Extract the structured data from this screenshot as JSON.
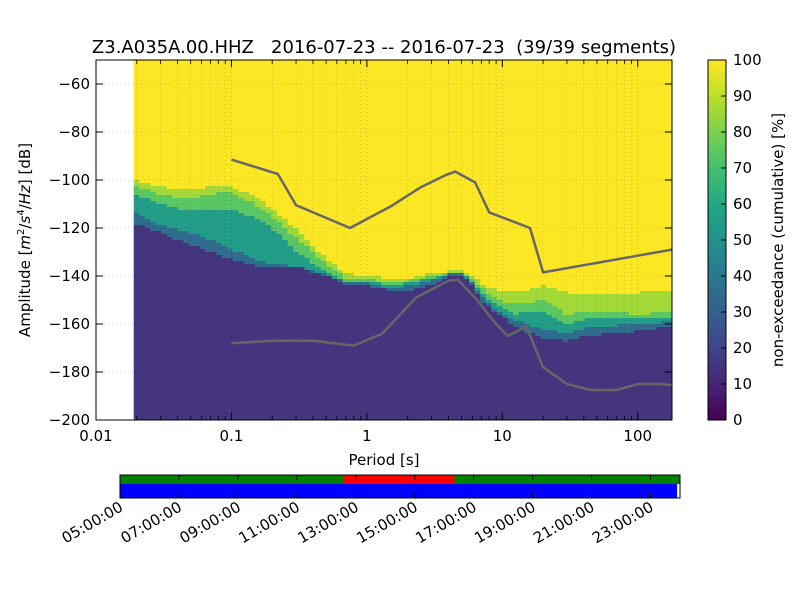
{
  "chart_data": [
    {
      "type": "heatmap",
      "title": "Z3.A035A.00.HHZ   2016-07-23 -- 2016-07-23  (39/39 segments)",
      "xlabel": "Period [s]",
      "ylabel": "Amplitude [m^2/s^4/Hz] [dB]",
      "x_scale": "log",
      "xlim": [
        0.01,
        179
      ],
      "ylim": [
        -200,
        -50
      ],
      "x_ticks": [
        0.01,
        0.1,
        1,
        10,
        100
      ],
      "x_tick_labels": [
        "0.01",
        "0.1",
        "1",
        "10",
        "100"
      ],
      "y_ticks": [
        -200,
        -180,
        -160,
        -140,
        -120,
        -100,
        -80,
        -60
      ],
      "y_tick_labels": [
        "−200",
        "−180",
        "−160",
        "−140",
        "−120",
        "−100",
        "−80",
        "−60"
      ],
      "grid": true,
      "data_xrange": [
        0.019,
        179
      ],
      "colorbar": {
        "label": "non-exceedance (cumulative) [%]",
        "range": [
          0,
          100
        ],
        "ticks": [
          0,
          10,
          20,
          30,
          40,
          50,
          60,
          70,
          80,
          90,
          100
        ],
        "tick_labels": [
          "0",
          "10",
          "20",
          "30",
          "40",
          "50",
          "60",
          "70",
          "80",
          "90",
          "100"
        ]
      },
      "color_stops": [
        {
          "value": 0,
          "color": "#440154"
        },
        {
          "value": 10,
          "color": "#482475"
        },
        {
          "value": 20,
          "color": "#414487"
        },
        {
          "value": 30,
          "color": "#355f8d"
        },
        {
          "value": 40,
          "color": "#2a788e"
        },
        {
          "value": 50,
          "color": "#21918c"
        },
        {
          "value": 60,
          "color": "#22a884"
        },
        {
          "value": 70,
          "color": "#44bf70"
        },
        {
          "value": 80,
          "color": "#7ad151"
        },
        {
          "value": 90,
          "color": "#bddf26"
        },
        {
          "value": 100,
          "color": "#fde725"
        }
      ],
      "percentile_boundaries": {
        "period": [
          0.019,
          0.03,
          0.05,
          0.07,
          0.1,
          0.15,
          0.2,
          0.3,
          0.5,
          0.7,
          1,
          1.5,
          2,
          3,
          4,
          5,
          6,
          7,
          9,
          12,
          15,
          20,
          30,
          40,
          60,
          100,
          179
        ],
        "p20": [
          -118,
          -122,
          -127,
          -130,
          -133,
          -136,
          -136,
          -136,
          -140,
          -144,
          -144,
          -146,
          -146,
          -144,
          -140,
          -140,
          -144,
          -150,
          -156,
          -160,
          -163,
          -166,
          -167,
          -165,
          -164,
          -163,
          -161
        ],
        "p40": [
          -113,
          -119,
          -122,
          -125,
          -129,
          -133,
          -135,
          -136,
          -139,
          -143,
          -143,
          -145,
          -144,
          -142,
          -139,
          -139,
          -143,
          -148,
          -154,
          -158,
          -160,
          -162,
          -164,
          -162,
          -161,
          -160,
          -159
        ],
        "p60": [
          -106,
          -110,
          -113,
          -113,
          -112,
          -116,
          -120,
          -130,
          -138,
          -143,
          -142,
          -144,
          -143,
          -141,
          -139,
          -139,
          -142,
          -147,
          -152,
          -156,
          -155,
          -155,
          -160,
          -158,
          -158,
          -158,
          -157
        ],
        "p80": [
          -102,
          -106,
          -108,
          -106,
          -105,
          -110,
          -115,
          -124,
          -135,
          -141,
          -141,
          -143,
          -142,
          -140,
          -139,
          -139,
          -141,
          -145,
          -150,
          -152,
          -151,
          -150,
          -156,
          -155,
          -155,
          -156,
          -155
        ],
        "p90": [
          -100,
          -103,
          -104,
          -103,
          -103,
          -107,
          -112,
          -120,
          -133,
          -139,
          -140,
          -141,
          -141,
          -139,
          -138,
          -138,
          -140,
          -143,
          -146,
          -147,
          -146,
          -144,
          -147,
          -148,
          -148,
          -147,
          -146
        ]
      },
      "series": [
        {
          "color": "#666666",
          "x": [
            0.1,
            0.22,
            0.3,
            0.75,
            1.5,
            2.5,
            3.8,
            4.5,
            6.3,
            8,
            16,
            20,
            179
          ],
          "y": [
            -91.5,
            -97.5,
            -110.5,
            -120,
            -111,
            -103,
            -98,
            -96.5,
            -101,
            -113.5,
            -120,
            -138.5,
            -129
          ]
        },
        {
          "color": "#666666",
          "x": [
            0.1,
            0.2,
            0.4,
            0.8,
            1.3,
            2.3,
            4,
            4.7,
            6.5,
            9,
            11,
            15,
            20,
            30,
            45,
            70,
            100,
            150,
            179
          ],
          "y": [
            -168,
            -167,
            -167,
            -169,
            -164,
            -149,
            -142,
            -141.5,
            -150,
            -160,
            -165,
            -161,
            -178,
            -185,
            -187.5,
            -187.5,
            -185,
            -185,
            -185.5
          ]
        }
      ]
    },
    {
      "type": "timeline",
      "x_tick_labels": [
        "05:00:00",
        "07:00:00",
        "09:00:00",
        "11:00:00",
        "13:00:00",
        "15:00:00",
        "17:00:00",
        "19:00:00",
        "21:00:00",
        "23:00:00"
      ],
      "x_tick_hours": [
        5,
        7,
        9,
        11,
        13,
        15,
        17,
        19,
        21,
        23
      ],
      "xlim_hours": [
        5,
        24
      ],
      "bars": [
        {
          "row": "top",
          "segments": [
            {
              "start": 5,
              "end": 12.6,
              "color": "#008000"
            },
            {
              "start": 12.6,
              "end": 16.35,
              "color": "#ff0000"
            },
            {
              "start": 16.35,
              "end": 24,
              "color": "#008000"
            }
          ]
        },
        {
          "row": "bottom",
          "segments": [
            {
              "start": 5,
              "end": 23.9,
              "color": "#0000ff"
            }
          ]
        }
      ]
    }
  ]
}
